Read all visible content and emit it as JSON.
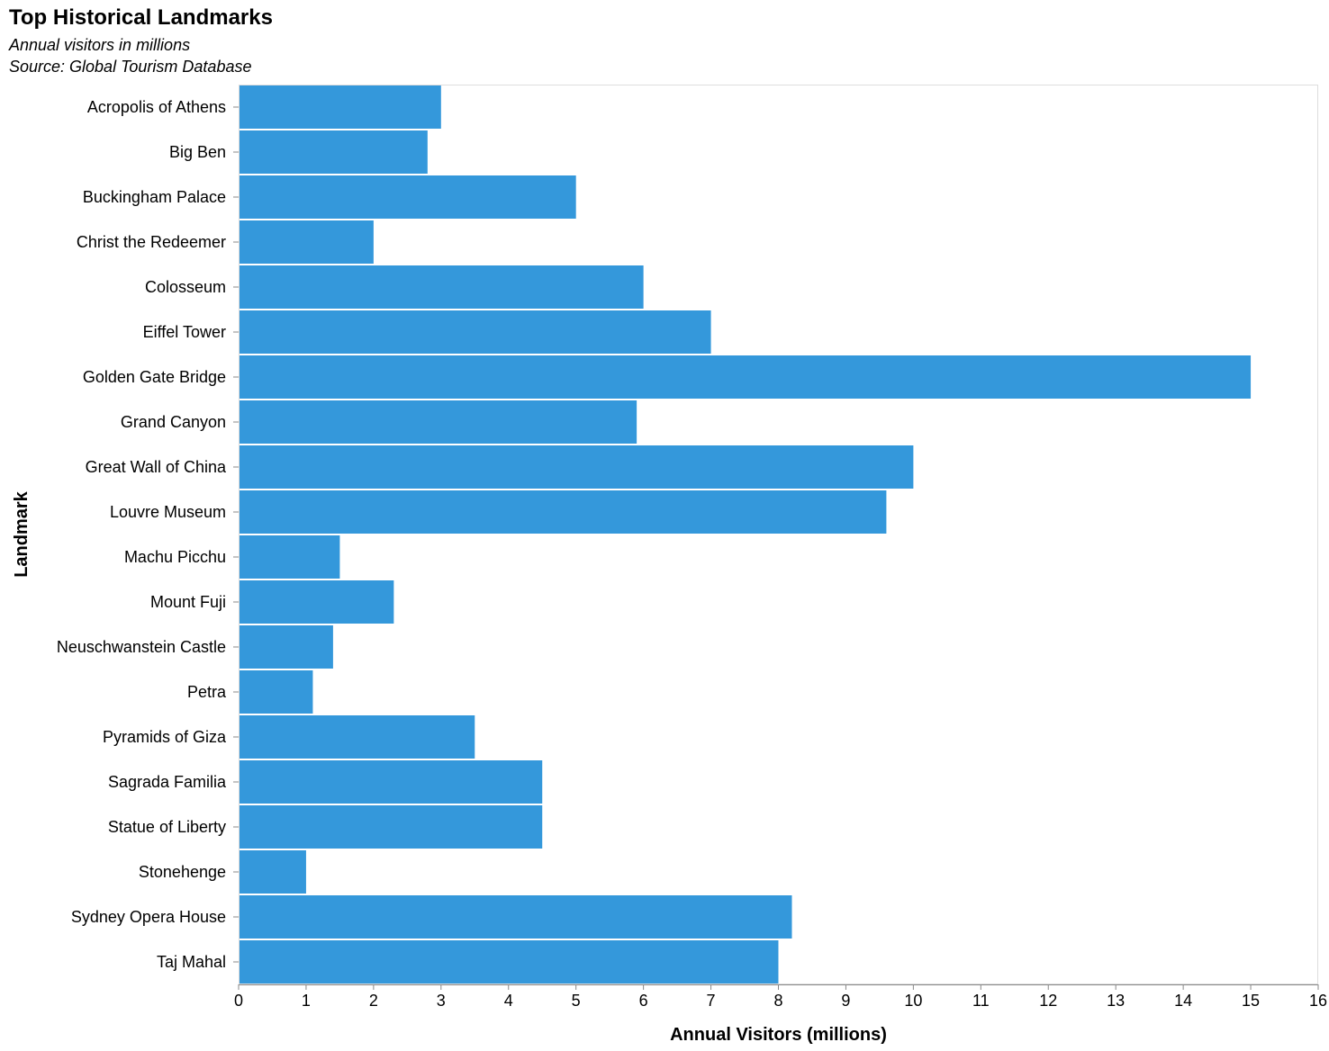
{
  "chart_data": {
    "type": "bar",
    "orientation": "horizontal",
    "title": "Top Historical Landmarks",
    "subtitle": [
      "Annual visitors in millions",
      "Source: Global Tourism Database"
    ],
    "xlabel": "Annual Visitors (millions)",
    "ylabel": "Landmark",
    "xlim": [
      0,
      16
    ],
    "x_ticks": [
      0,
      1,
      2,
      3,
      4,
      5,
      6,
      7,
      8,
      9,
      10,
      11,
      12,
      13,
      14,
      15,
      16
    ],
    "grid": false,
    "legend": "none",
    "bar_color": "#3498db",
    "categories": [
      "Acropolis of Athens",
      "Big Ben",
      "Buckingham Palace",
      "Christ the Redeemer",
      "Colosseum",
      "Eiffel Tower",
      "Golden Gate Bridge",
      "Grand Canyon",
      "Great Wall of China",
      "Louvre Museum",
      "Machu Picchu",
      "Mount Fuji",
      "Neuschwanstein Castle",
      "Petra",
      "Pyramids of Giza",
      "Sagrada Familia",
      "Statue of Liberty",
      "Stonehenge",
      "Sydney Opera House",
      "Taj Mahal"
    ],
    "values": [
      3.0,
      2.8,
      5.0,
      2.0,
      6.0,
      7.0,
      15.0,
      5.9,
      10.0,
      9.6,
      1.5,
      2.3,
      1.4,
      1.1,
      3.5,
      4.5,
      4.5,
      1.0,
      8.2,
      8.0
    ]
  }
}
